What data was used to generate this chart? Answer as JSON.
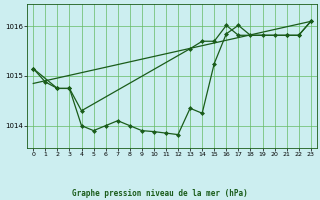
{
  "background_color": "#cceef0",
  "grid_color": "#66bb66",
  "line_color": "#1a5c1a",
  "title": "Graphe pression niveau de la mer (hPa)",
  "xlim": [
    -0.5,
    23.5
  ],
  "ylim": [
    1013.55,
    1016.45
  ],
  "xticks": [
    0,
    1,
    2,
    3,
    4,
    5,
    6,
    7,
    8,
    9,
    10,
    11,
    12,
    13,
    14,
    15,
    16,
    17,
    18,
    19,
    20,
    21,
    22,
    23
  ],
  "yticks": [
    1014,
    1015,
    1016
  ],
  "series1_x": [
    0,
    1,
    2,
    3,
    4,
    5,
    6,
    7,
    8,
    9,
    10,
    11,
    12,
    13,
    14,
    15,
    16,
    17,
    18,
    19,
    20,
    21,
    22,
    23
  ],
  "series1_y": [
    1015.15,
    1014.88,
    1014.75,
    1014.75,
    1014.0,
    1013.9,
    1014.0,
    1014.1,
    1014.0,
    1013.9,
    1013.88,
    1013.85,
    1013.82,
    1014.35,
    1014.25,
    1015.25,
    1015.85,
    1016.02,
    1015.82,
    1015.82,
    1015.82,
    1015.82,
    1015.82,
    1016.1
  ],
  "series2_x": [
    0,
    2,
    3,
    4,
    13,
    14,
    15,
    16,
    17,
    21,
    22,
    23
  ],
  "series2_y": [
    1015.15,
    1014.75,
    1014.75,
    1014.3,
    1015.55,
    1015.7,
    1015.7,
    1016.02,
    1015.82,
    1015.82,
    1015.82,
    1016.1
  ],
  "series3_x": [
    0,
    23
  ],
  "series3_y": [
    1014.85,
    1016.1
  ]
}
